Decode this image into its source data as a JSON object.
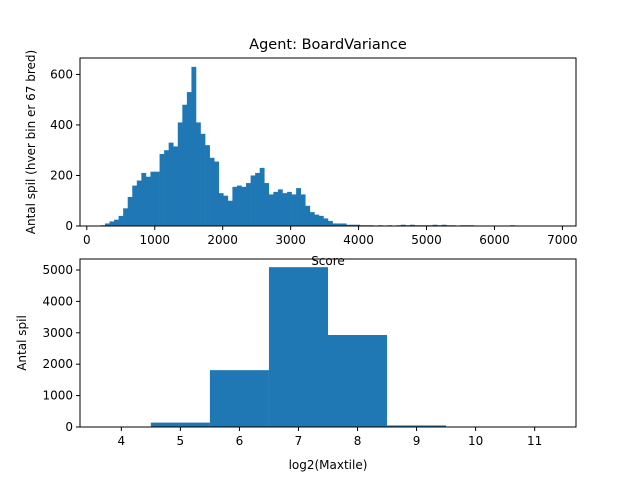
{
  "chart_data": [
    {
      "type": "bar",
      "title": "Agent: BoardVariance",
      "xlabel": "Score",
      "ylabel": "Antal spil (hver bin er 67 bred)",
      "bin_width": 67,
      "xlim": [
        -100,
        7200
      ],
      "ylim": [
        0,
        665
      ],
      "xticks": [
        0,
        1000,
        2000,
        3000,
        4000,
        5000,
        6000,
        7000
      ],
      "yticks": [
        0,
        200,
        400,
        600
      ],
      "color": "#1f77b4",
      "bins": [
        [
          200,
          3
        ],
        [
          267,
          10
        ],
        [
          334,
          18
        ],
        [
          401,
          25
        ],
        [
          468,
          40
        ],
        [
          535,
          70
        ],
        [
          602,
          115
        ],
        [
          669,
          160
        ],
        [
          736,
          180
        ],
        [
          803,
          210
        ],
        [
          870,
          195
        ],
        [
          937,
          215
        ],
        [
          1004,
          215
        ],
        [
          1071,
          285
        ],
        [
          1138,
          300
        ],
        [
          1205,
          330
        ],
        [
          1272,
          315
        ],
        [
          1339,
          410
        ],
        [
          1406,
          480
        ],
        [
          1473,
          530
        ],
        [
          1540,
          630
        ],
        [
          1607,
          410
        ],
        [
          1674,
          365
        ],
        [
          1741,
          320
        ],
        [
          1808,
          270
        ],
        [
          1875,
          255
        ],
        [
          1942,
          130
        ],
        [
          2009,
          120
        ],
        [
          2076,
          100
        ],
        [
          2143,
          155
        ],
        [
          2210,
          160
        ],
        [
          2277,
          155
        ],
        [
          2344,
          170
        ],
        [
          2411,
          200
        ],
        [
          2478,
          210
        ],
        [
          2545,
          230
        ],
        [
          2612,
          170
        ],
        [
          2679,
          125
        ],
        [
          2746,
          135
        ],
        [
          2813,
          145
        ],
        [
          2880,
          130
        ],
        [
          2947,
          135
        ],
        [
          3014,
          125
        ],
        [
          3081,
          150
        ],
        [
          3148,
          125
        ],
        [
          3215,
          80
        ],
        [
          3282,
          55
        ],
        [
          3349,
          45
        ],
        [
          3416,
          40
        ],
        [
          3483,
          30
        ],
        [
          3550,
          20
        ],
        [
          3617,
          10
        ],
        [
          3684,
          10
        ],
        [
          3751,
          10
        ],
        [
          3818,
          5
        ],
        [
          3885,
          5
        ],
        [
          3952,
          5
        ],
        [
          4019,
          3
        ],
        [
          4086,
          3
        ],
        [
          4153,
          3
        ],
        [
          4220,
          2
        ],
        [
          4287,
          3
        ],
        [
          4354,
          2
        ],
        [
          4421,
          3
        ],
        [
          4488,
          2
        ],
        [
          4555,
          3
        ],
        [
          4622,
          5
        ],
        [
          4689,
          3
        ],
        [
          4756,
          5
        ],
        [
          4823,
          3
        ],
        [
          4890,
          3
        ],
        [
          4957,
          3
        ],
        [
          5024,
          3
        ],
        [
          5091,
          5
        ],
        [
          5158,
          3
        ],
        [
          5225,
          5
        ],
        [
          5292,
          3
        ],
        [
          5359,
          3
        ],
        [
          5426,
          2
        ],
        [
          5493,
          3
        ],
        [
          5560,
          3
        ],
        [
          5627,
          3
        ],
        [
          5694,
          2
        ],
        [
          5761,
          1
        ],
        [
          6230,
          3
        ],
        [
          6297,
          2
        ],
        [
          6700,
          2
        ],
        [
          6834,
          2
        ],
        [
          6901,
          1
        ]
      ]
    },
    {
      "type": "bar",
      "title": "",
      "xlabel": "log2(Maxtile)",
      "ylabel": "Antal spil",
      "xlim": [
        3.3,
        11.7
      ],
      "ylim": [
        0,
        5350
      ],
      "xticks": [
        4,
        5,
        6,
        7,
        8,
        9,
        10,
        11
      ],
      "yticks": [
        0,
        1000,
        2000,
        3000,
        4000,
        5000
      ],
      "color": "#1f77b4",
      "categories": [
        5,
        6,
        7,
        8,
        9
      ],
      "values": [
        140,
        1810,
        5090,
        2930,
        50
      ]
    }
  ]
}
